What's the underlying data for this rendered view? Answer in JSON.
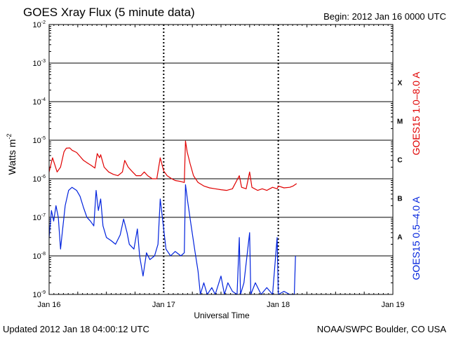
{
  "chart_data": {
    "type": "line",
    "title": "GOES Xray Flux (5 minute data)",
    "begin_label": "Begin:  2012 Jan 16 0000 UTC",
    "xlabel": "Universal Time",
    "ylabel": "Watts m",
    "ylabel_sup": "-2",
    "updated_label": "Updated 2012 Jan 18 04:00:12 UTC",
    "credit_label": "NOAA/SWPC Boulder, CO USA",
    "x_scale": "days since 2012 Jan 16 0000 UTC",
    "xlim": [
      0,
      3
    ],
    "x_ticks": [
      {
        "x": 0,
        "label": "Jan 16"
      },
      {
        "x": 1,
        "label": "Jan 17"
      },
      {
        "x": 2,
        "label": "Jan 18"
      },
      {
        "x": 3,
        "label": "Jan 19"
      }
    ],
    "y_scale": "log",
    "ylim": [
      1e-09,
      0.01
    ],
    "y_ticks": [
      {
        "exp": -9,
        "mant": "10",
        "sup": "-9"
      },
      {
        "exp": -8,
        "mant": "10",
        "sup": "-8"
      },
      {
        "exp": -7,
        "mant": "10",
        "sup": "-7"
      },
      {
        "exp": -6,
        "mant": "10",
        "sup": "-6"
      },
      {
        "exp": -5,
        "mant": "10",
        "sup": "-5"
      },
      {
        "exp": -4,
        "mant": "10",
        "sup": "-4"
      },
      {
        "exp": -3,
        "mant": "10",
        "sup": "-3"
      },
      {
        "exp": -2,
        "mant": "10",
        "sup": "-2"
      }
    ],
    "flare_classes": [
      {
        "label": "X",
        "exp": -3.5
      },
      {
        "label": "M",
        "exp": -4.5
      },
      {
        "label": "C",
        "exp": -5.5
      },
      {
        "label": "B",
        "exp": -6.5
      },
      {
        "label": "A",
        "exp": -7.5
      }
    ],
    "grid": true,
    "series": [
      {
        "name": "GOES15 1.0–8.0 A",
        "color": "#e00000",
        "points": [
          [
            0.0,
            1.5e-06
          ],
          [
            0.03,
            3.5e-06
          ],
          [
            0.07,
            1.5e-06
          ],
          [
            0.1,
            2e-06
          ],
          [
            0.13,
            5e-06
          ],
          [
            0.15,
            6.2e-06
          ],
          [
            0.18,
            6.3e-06
          ],
          [
            0.2,
            5.5e-06
          ],
          [
            0.24,
            4.8e-06
          ],
          [
            0.27,
            3.8e-06
          ],
          [
            0.3,
            3e-06
          ],
          [
            0.34,
            2.5e-06
          ],
          [
            0.37,
            2.2e-06
          ],
          [
            0.4,
            1.9e-06
          ],
          [
            0.42,
            4.5e-06
          ],
          [
            0.44,
            3.5e-06
          ],
          [
            0.45,
            4.2e-06
          ],
          [
            0.48,
            2e-06
          ],
          [
            0.52,
            1.5e-06
          ],
          [
            0.56,
            1.3e-06
          ],
          [
            0.6,
            1.2e-06
          ],
          [
            0.64,
            1.5e-06
          ],
          [
            0.66,
            3e-06
          ],
          [
            0.69,
            2e-06
          ],
          [
            0.72,
            1.6e-06
          ],
          [
            0.76,
            1.2e-06
          ],
          [
            0.8,
            1.2e-06
          ],
          [
            0.83,
            1.5e-06
          ],
          [
            0.86,
            1.2e-06
          ],
          [
            0.9,
            1e-06
          ],
          [
            0.94,
            1e-06
          ],
          [
            0.97,
            3.5e-06
          ],
          [
            1.0,
            1.6e-06
          ],
          [
            1.03,
            1.2e-06
          ],
          [
            1.07,
            1e-06
          ],
          [
            1.1,
            9e-07
          ],
          [
            1.15,
            8.5e-07
          ],
          [
            1.18,
            8e-07
          ],
          [
            1.19,
            9.5e-06
          ],
          [
            1.205,
            5e-06
          ],
          [
            1.23,
            2.5e-06
          ],
          [
            1.26,
            1.2e-06
          ],
          [
            1.3,
            8e-07
          ],
          [
            1.35,
            6.5e-07
          ],
          [
            1.4,
            5.8e-07
          ],
          [
            1.45,
            5.5e-07
          ],
          [
            1.5,
            5.2e-07
          ],
          [
            1.55,
            5e-07
          ],
          [
            1.6,
            5.5e-07
          ],
          [
            1.66,
            1.2e-06
          ],
          [
            1.68,
            6e-07
          ],
          [
            1.72,
            5.5e-07
          ],
          [
            1.75,
            1.5e-06
          ],
          [
            1.77,
            6e-07
          ],
          [
            1.82,
            5e-07
          ],
          [
            1.86,
            5.5e-07
          ],
          [
            1.9,
            5e-07
          ],
          [
            1.95,
            6e-07
          ],
          [
            1.99,
            5.5e-07
          ],
          [
            2.0,
            6.5e-07
          ],
          [
            2.05,
            5.8e-07
          ],
          [
            2.1,
            6e-07
          ],
          [
            2.13,
            6.5e-07
          ],
          [
            2.16,
            7.5e-07
          ]
        ]
      },
      {
        "name": "GOES15 0.5–4.0 A",
        "color": "#0022dd",
        "points": [
          [
            0.0,
            3e-08
          ],
          [
            0.02,
            1.5e-07
          ],
          [
            0.04,
            8e-08
          ],
          [
            0.06,
            2e-07
          ],
          [
            0.08,
            1e-07
          ],
          [
            0.1,
            1.5e-08
          ],
          [
            0.11,
            3e-08
          ],
          [
            0.14,
            2e-07
          ],
          [
            0.17,
            5e-07
          ],
          [
            0.2,
            6e-07
          ],
          [
            0.24,
            5e-07
          ],
          [
            0.27,
            3.5e-07
          ],
          [
            0.3,
            1.8e-07
          ],
          [
            0.33,
            1e-07
          ],
          [
            0.36,
            8e-08
          ],
          [
            0.39,
            6e-08
          ],
          [
            0.41,
            5e-07
          ],
          [
            0.43,
            1.5e-07
          ],
          [
            0.45,
            3e-07
          ],
          [
            0.47,
            6e-08
          ],
          [
            0.5,
            3e-08
          ],
          [
            0.54,
            2.5e-08
          ],
          [
            0.58,
            2e-08
          ],
          [
            0.62,
            3.5e-08
          ],
          [
            0.65,
            9e-08
          ],
          [
            0.68,
            4e-08
          ],
          [
            0.7,
            2e-08
          ],
          [
            0.74,
            1.5e-08
          ],
          [
            0.77,
            5e-08
          ],
          [
            0.79,
            1e-08
          ],
          [
            0.82,
            3e-09
          ],
          [
            0.85,
            1.2e-08
          ],
          [
            0.88,
            8e-09
          ],
          [
            0.92,
            1e-08
          ],
          [
            0.95,
            2e-08
          ],
          [
            0.97,
            3e-07
          ],
          [
            1.0,
            5e-08
          ],
          [
            1.02,
            1.5e-08
          ],
          [
            1.06,
            1e-08
          ],
          [
            1.1,
            1.3e-08
          ],
          [
            1.15,
            1e-08
          ],
          [
            1.18,
            1.2e-08
          ],
          [
            1.19,
            7e-07
          ],
          [
            1.21,
            2.5e-07
          ],
          [
            1.24,
            6e-08
          ],
          [
            1.27,
            1.5e-08
          ],
          [
            1.3,
            4e-09
          ],
          [
            1.32,
            1e-09
          ],
          [
            1.35,
            2e-09
          ],
          [
            1.38,
            1e-09
          ],
          [
            1.42,
            1.5e-09
          ],
          [
            1.45,
            1e-09
          ],
          [
            1.5,
            3e-09
          ],
          [
            1.53,
            1e-09
          ],
          [
            1.56,
            2e-09
          ],
          [
            1.6,
            1.2e-09
          ],
          [
            1.64,
            1e-09
          ],
          [
            1.66,
            3e-08
          ],
          [
            1.67,
            1e-09
          ],
          [
            1.7,
            2e-09
          ],
          [
            1.75,
            4e-08
          ],
          [
            1.76,
            1e-09
          ],
          [
            1.8,
            2e-09
          ],
          [
            1.85,
            1e-09
          ],
          [
            1.9,
            1.5e-09
          ],
          [
            1.95,
            1e-09
          ],
          [
            1.99,
            3e-08
          ],
          [
            2.0,
            1e-09
          ],
          [
            2.05,
            1.2e-09
          ],
          [
            2.1,
            1e-09
          ],
          [
            2.14,
            1e-09
          ],
          [
            2.15,
            1e-08
          ]
        ]
      }
    ]
  }
}
